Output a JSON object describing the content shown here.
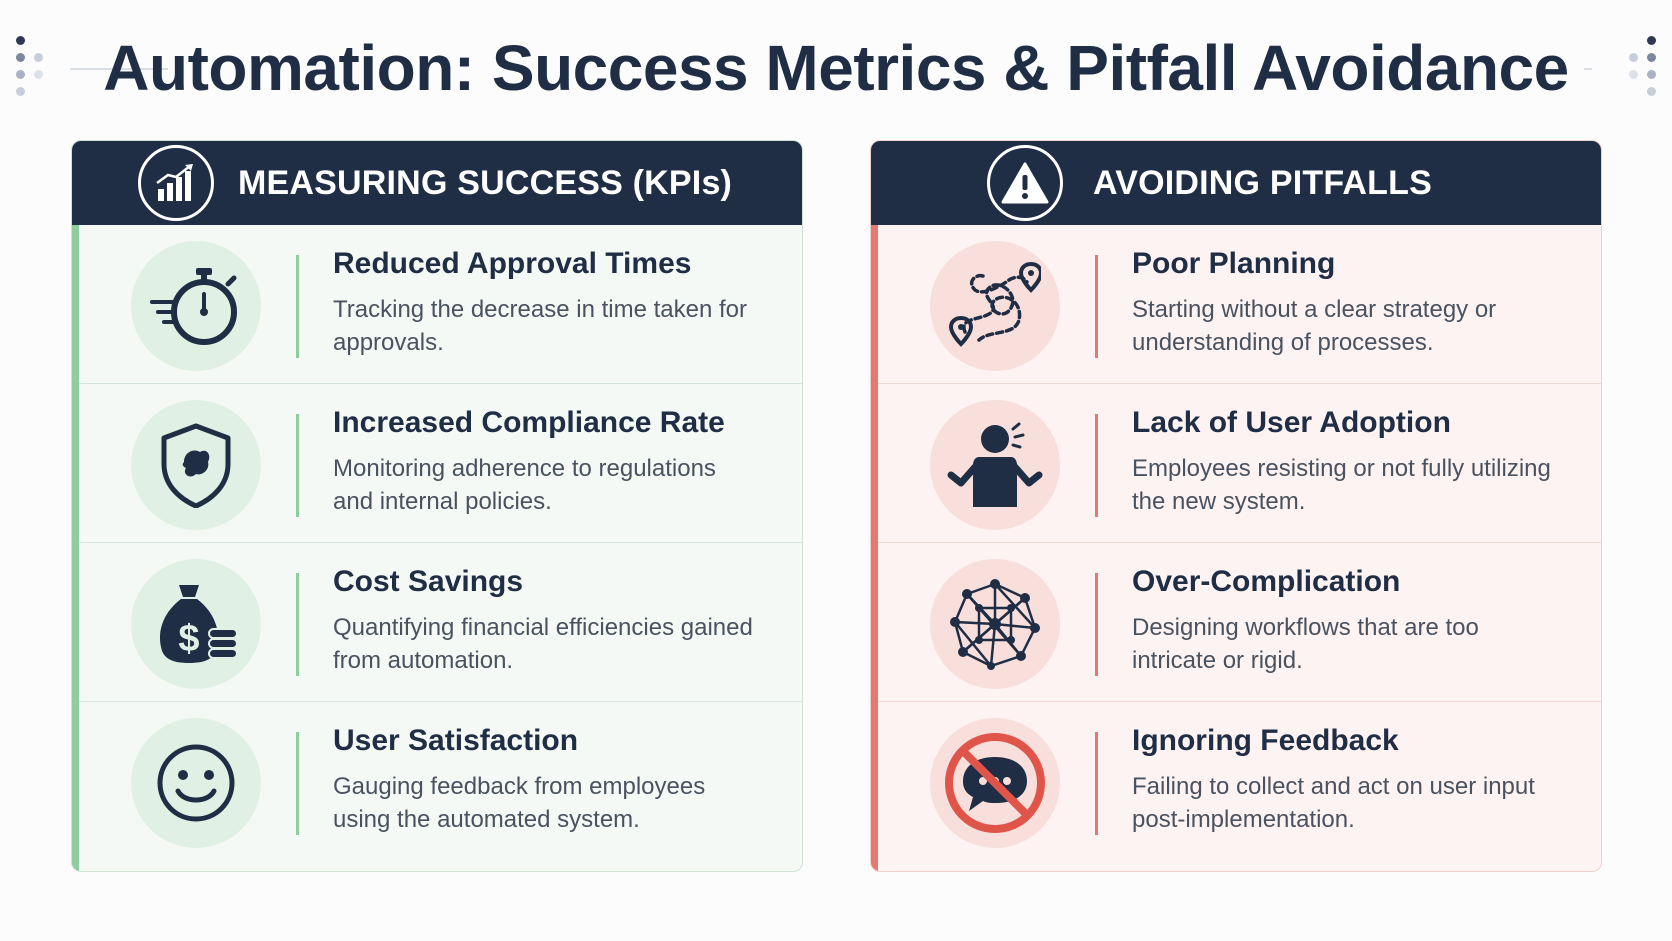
{
  "title": "Automation: Success Metrics & Pitfall Avoidance",
  "colors": {
    "navy": "#1f2d45",
    "success_accent": "#8fcd9e",
    "pitfall_accent": "#e5786f",
    "success_bg": "#f4f9f5",
    "pitfall_bg": "#fdf3f2"
  },
  "kpis": {
    "header": "MEASURING SUCCESS (KPIs)",
    "header_icon": "bar-chart-trend-icon",
    "items": [
      {
        "title": "Reduced Approval Times",
        "description": "Tracking the decrease in time taken for approvals.",
        "icon": "stopwatch-icon"
      },
      {
        "title": "Increased Compliance Rate",
        "description": "Monitoring adherence to regulations and internal policies.",
        "icon": "shield-icon"
      },
      {
        "title": "Cost Savings",
        "description": "Quantifying financial efficiencies gained from automation.",
        "icon": "money-bag-icon"
      },
      {
        "title": "User Satisfaction",
        "description": "Gauging feedback from employees using the automated system.",
        "icon": "smiley-face-icon"
      }
    ]
  },
  "pitfalls": {
    "header": "AVOIDING PITFALLS",
    "header_icon": "warning-triangle-icon",
    "items": [
      {
        "title": "Poor Planning",
        "description": "Starting without a clear strategy or understanding of processes.",
        "icon": "tangled-route-icon"
      },
      {
        "title": "Lack of User Adoption",
        "description": "Employees resisting or not fully utilizing the new system.",
        "icon": "confused-person-icon"
      },
      {
        "title": "Over-Complication",
        "description": "Designing workflows that are too intricate or rigid.",
        "icon": "complex-network-icon"
      },
      {
        "title": "Ignoring Feedback",
        "description": "Failing to collect and act on user input post-implementation.",
        "icon": "no-feedback-icon"
      }
    ]
  }
}
